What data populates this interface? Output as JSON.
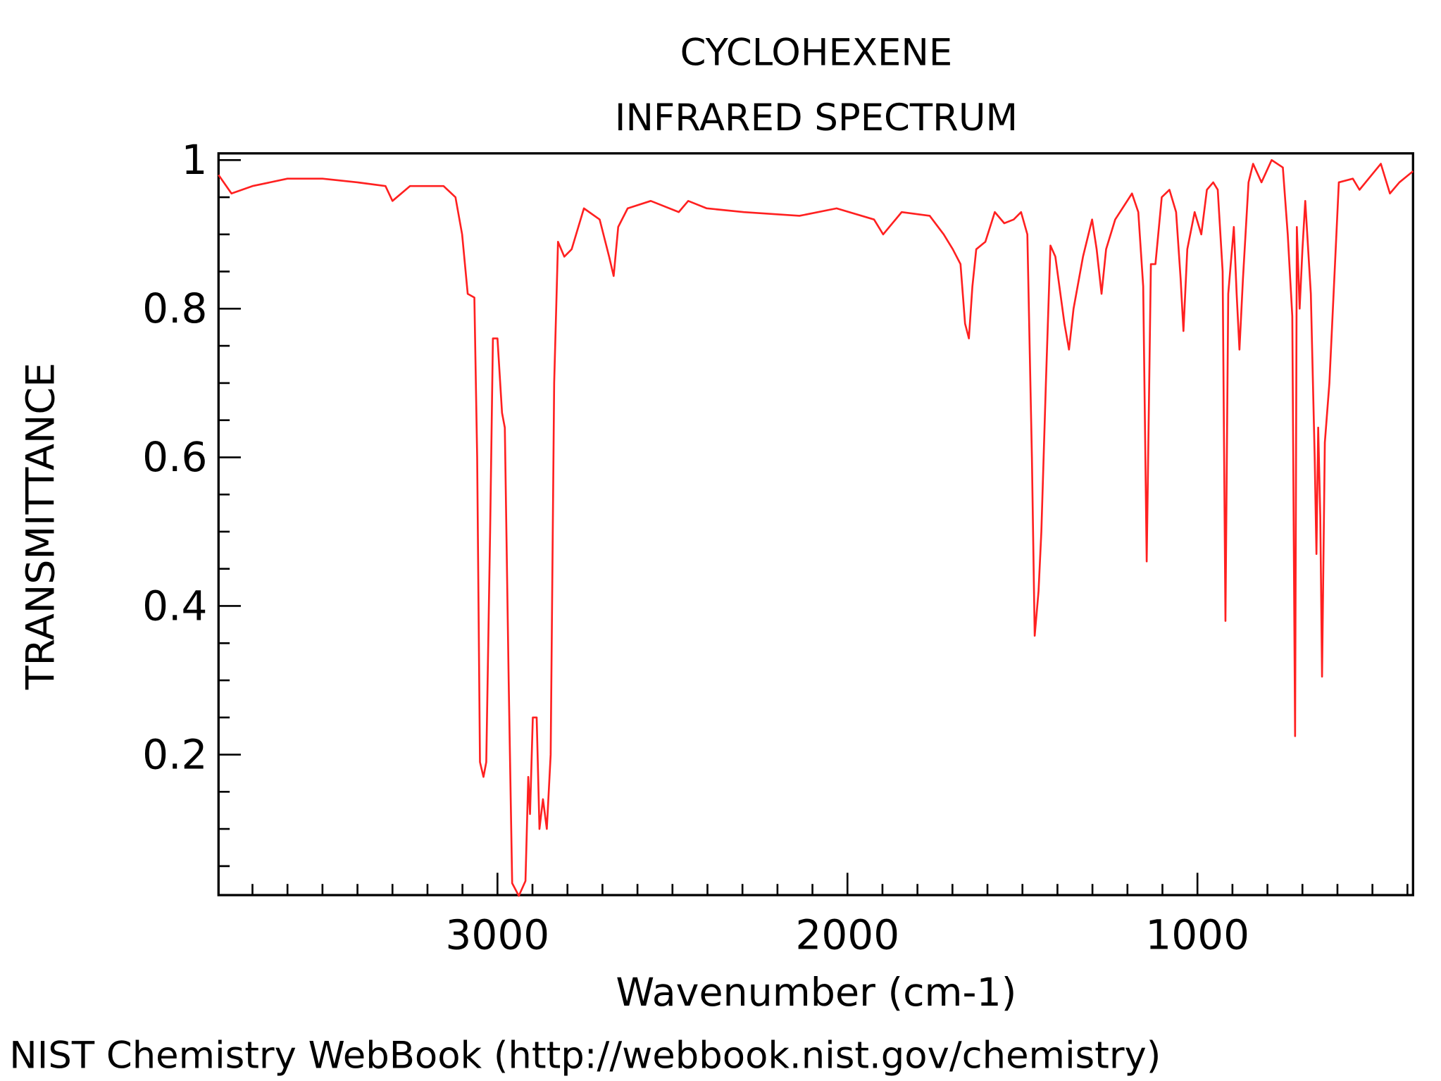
{
  "chart_data": {
    "type": "line",
    "title": "CYCLOHEXENE",
    "subtitle": "INFRARED SPECTRUM",
    "xlabel": "Wavenumber (cm-1)",
    "ylabel": "TRANSMITTANCE",
    "footer": "NIST Chemistry WebBook (http://webbook.nist.gov/chemistry)",
    "xlim": [
      3797,
      384
    ],
    "ylim": [
      0.011,
      1.009
    ],
    "xticks": [
      3000,
      2000,
      1000
    ],
    "xminorticks": [
      3700,
      3600,
      3500,
      3400,
      3300,
      3200,
      3100,
      2900,
      2800,
      2700,
      2600,
      2500,
      2400,
      2300,
      2200,
      2100,
      1900,
      1800,
      1700,
      1600,
      1500,
      1400,
      1300,
      1200,
      1100,
      900,
      800,
      700,
      600,
      500,
      400
    ],
    "yticks": [
      0.2,
      0.4,
      0.6,
      0.8,
      1
    ],
    "yminorticks": [
      0.05,
      0.1,
      0.15,
      0.25,
      0.3,
      0.35,
      0.45,
      0.5,
      0.55,
      0.65,
      0.7,
      0.75,
      0.85,
      0.9,
      0.95
    ],
    "x": [
      3797,
      3760,
      3700,
      3600,
      3500,
      3400,
      3320,
      3300,
      3250,
      3154,
      3120,
      3101,
      3085,
      3066,
      3058,
      3050,
      3040,
      3032,
      3021,
      3013,
      3000,
      2987,
      2979,
      2968,
      2958,
      2939,
      2920,
      2912,
      2907,
      2899,
      2888,
      2880,
      2870,
      2859,
      2848,
      2838,
      2827,
      2809,
      2788,
      2753,
      2708,
      2681,
      2668,
      2655,
      2628,
      2562,
      2482,
      2455,
      2402,
      2296,
      2137,
      2031,
      1924,
      1898,
      1845,
      1765,
      1725,
      1699,
      1677,
      1664,
      1653,
      1643,
      1632,
      1606,
      1579,
      1552,
      1525,
      1504,
      1486,
      1473,
      1465,
      1454,
      1446,
      1433,
      1420,
      1406,
      1380,
      1367,
      1354,
      1327,
      1301,
      1288,
      1274,
      1261,
      1235,
      1187,
      1169,
      1155,
      1145,
      1133,
      1120,
      1102,
      1080,
      1061,
      1048,
      1040,
      1029,
      1008,
      989,
      973,
      955,
      942,
      928,
      920,
      912,
      896,
      888,
      880,
      870,
      854,
      841,
      817,
      788,
      756,
      742,
      729,
      721,
      716,
      708,
      700,
      692,
      676,
      665,
      660,
      655,
      649,
      644,
      636,
      623,
      596,
      556,
      537,
      476,
      450,
      423,
      384
    ],
    "series": [
      {
        "color": "#ff2020",
        "values": [
          0.98,
          0.955,
          0.965,
          0.975,
          0.975,
          0.97,
          0.965,
          0.945,
          0.965,
          0.965,
          0.95,
          0.9,
          0.82,
          0.815,
          0.6,
          0.19,
          0.17,
          0.19,
          0.5,
          0.76,
          0.76,
          0.66,
          0.64,
          0.3,
          0.027,
          0.01,
          0.03,
          0.17,
          0.12,
          0.25,
          0.25,
          0.1,
          0.14,
          0.1,
          0.2,
          0.7,
          0.89,
          0.87,
          0.88,
          0.935,
          0.92,
          0.87,
          0.844,
          0.91,
          0.935,
          0.945,
          0.93,
          0.945,
          0.935,
          0.93,
          0.925,
          0.935,
          0.92,
          0.9,
          0.93,
          0.925,
          0.9,
          0.88,
          0.86,
          0.78,
          0.76,
          0.83,
          0.88,
          0.89,
          0.93,
          0.915,
          0.92,
          0.93,
          0.9,
          0.6,
          0.36,
          0.42,
          0.5,
          0.7,
          0.885,
          0.87,
          0.78,
          0.745,
          0.8,
          0.87,
          0.92,
          0.88,
          0.82,
          0.88,
          0.92,
          0.955,
          0.93,
          0.83,
          0.46,
          0.86,
          0.86,
          0.95,
          0.96,
          0.93,
          0.84,
          0.77,
          0.88,
          0.93,
          0.9,
          0.96,
          0.97,
          0.96,
          0.85,
          0.38,
          0.82,
          0.91,
          0.82,
          0.745,
          0.84,
          0.97,
          0.995,
          0.97,
          1.0,
          0.99,
          0.9,
          0.79,
          0.225,
          0.91,
          0.8,
          0.88,
          0.945,
          0.82,
          0.6,
          0.47,
          0.64,
          0.52,
          0.305,
          0.62,
          0.7,
          0.97,
          0.975,
          0.96,
          0.995,
          0.955,
          0.97,
          0.985
        ]
      }
    ]
  }
}
